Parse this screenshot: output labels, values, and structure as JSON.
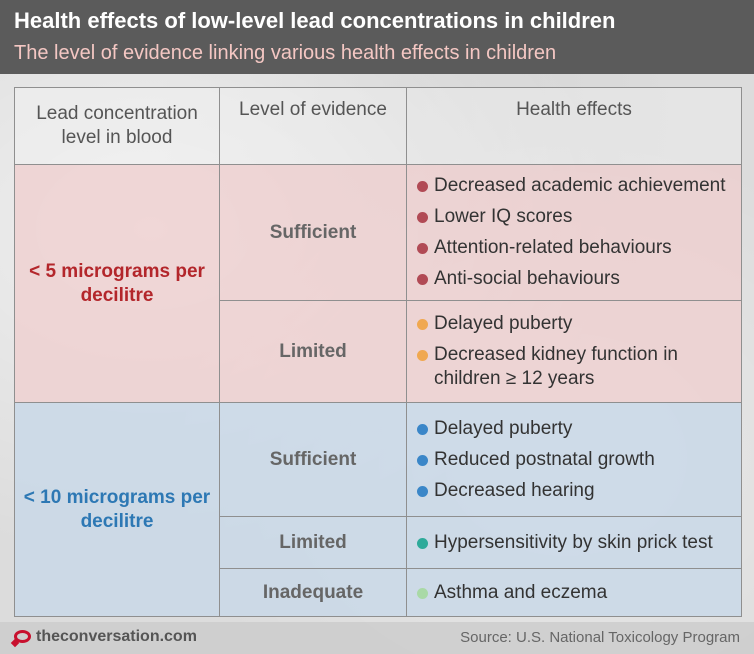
{
  "header": {
    "title": "Health effects of low-level lead concentrations in children",
    "subtitle": "The level of evidence linking various health effects in children"
  },
  "table": {
    "columns": [
      "Lead concentration level in blood",
      "Level of evidence",
      "Health effects"
    ],
    "groups": [
      {
        "concentration": "< 5 micrograms per decilitre",
        "color": "#b3262b",
        "rows": [
          {
            "level": "Sufficient",
            "dot_color": "#b14a55",
            "effects": [
              "Decreased academic achievement",
              "Lower IQ scores",
              "Attention-related behaviours",
              "Anti-social behaviours"
            ]
          },
          {
            "level": "Limited",
            "dot_color": "#f0a850",
            "effects": [
              "Delayed puberty",
              "Decreased kidney function in children ≥ 12 years"
            ]
          }
        ]
      },
      {
        "concentration": "< 10 micrograms per decilitre",
        "color": "#2d78b4",
        "rows": [
          {
            "level": "Sufficient",
            "dot_color": "#3a86c8",
            "effects": [
              "Delayed puberty",
              "Reduced postnatal growth",
              "Decreased hearing"
            ]
          },
          {
            "level": "Limited",
            "dot_color": "#2eaa9a",
            "effects": [
              "Hypersensitivity by skin prick test"
            ]
          },
          {
            "level": "Inadequate",
            "dot_color": "#a9d9a6",
            "effects": [
              "Asthma and eczema"
            ]
          }
        ]
      }
    ]
  },
  "footer": {
    "site": "theconversation.com",
    "source": "Source: U.S. National Toxicology Program",
    "logo_color": "#c8102e"
  }
}
